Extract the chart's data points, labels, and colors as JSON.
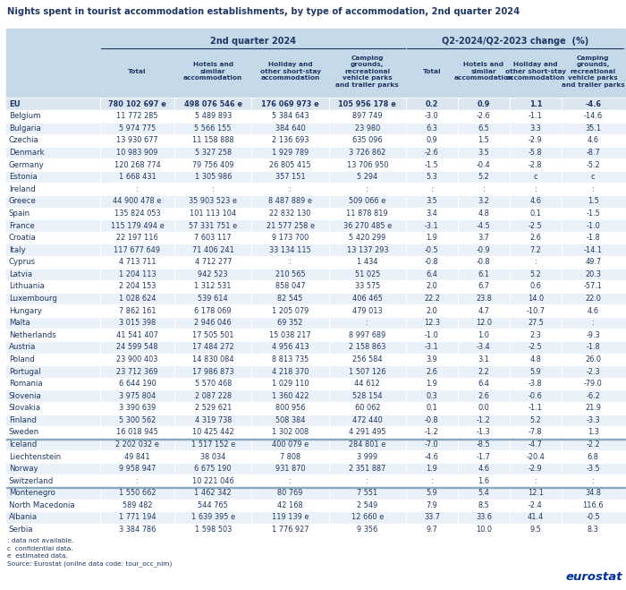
{
  "title": "Nights spent in tourist accommodation establishments, by type of accommodation, 2nd quarter 2024",
  "col_group1_label": "2nd quarter 2024",
  "col_group2_label": "Q2-2024/Q2-2023 change  (%)",
  "col_headers": [
    "Total",
    "Hotels and\nsimilar\naccommodation",
    "Holiday and\nother short-stay\naccommodation",
    "Camping\ngrounds,\nrecreational\nvehicle parks\nand trailer parks",
    "Total",
    "Hotels and\nsimilar\naccommodation",
    "Holiday and\nother short-stay\naccommodation",
    "Camping\ngrounds,\nrecreational\nvehicle parks\nand trailer parks"
  ],
  "rows": [
    [
      "EU",
      "780 102 697 e",
      "498 076 546 e",
      "176 069 973 e",
      "105 956 178 e",
      "0.2",
      "0.9",
      "1.1",
      "-4.6"
    ],
    [
      "Belgium",
      "11 772 285",
      "5 489 893",
      "5 384 643",
      "897 749",
      "-3.0",
      "-2.6",
      "-1.1",
      "-14.6"
    ],
    [
      "Bulgaria",
      "5 974 775",
      "5 566 155",
      "384 640",
      "23 980",
      "6.3",
      "6.5",
      "3.3",
      "35.1"
    ],
    [
      "Czechia",
      "13 930 677",
      "11 158 888",
      "2 136 693",
      "635 096",
      "0.9",
      "1.5",
      "-2.9",
      "4.6"
    ],
    [
      "Denmark",
      "10 983 909",
      "5 327 258",
      "1 929 789",
      "3 726 862",
      "-2.6",
      "3.5",
      "-5.8",
      "-8.7"
    ],
    [
      "Germany",
      "120 268 774",
      "79 756 409",
      "26 805 415",
      "13 706 950",
      "-1.5",
      "-0.4",
      "-2.8",
      "-5.2"
    ],
    [
      "Estonia",
      "1 668 431",
      "1 305 986",
      "357 151",
      "5 294",
      "5.3",
      "5.2",
      "c",
      "c"
    ],
    [
      "Ireland",
      ":",
      ":",
      ":",
      ":",
      ":",
      ":",
      ":",
      ":"
    ],
    [
      "Greece",
      "44 900 478 e",
      "35 903 523 e",
      "8 487 889 e",
      "509 066 e",
      "3.5",
      "3.2",
      "4.6",
      "1.5"
    ],
    [
      "Spain",
      "135 824 053",
      "101 113 104",
      "22 832 130",
      "11 878 819",
      "3.4",
      "4.8",
      "0.1",
      "-1.5"
    ],
    [
      "France",
      "115 179 494 e",
      "57 331 751 e",
      "21 577 258 e",
      "36 270 485 e",
      "-3.1",
      "-4.5",
      "-2.5",
      "-1.0"
    ],
    [
      "Croatia",
      "22 197 116",
      "7 603 117",
      "9 173 700",
      "5 420 299",
      "1.9",
      "3.7",
      "2.6",
      "-1.8"
    ],
    [
      "Italy",
      "117 677 649",
      "71 406 241",
      "33 134 115",
      "13 137 293",
      "-0.5",
      "-0.9",
      "7.2",
      "-14.1"
    ],
    [
      "Cyprus",
      "4 713 711",
      "4 712 277",
      ":",
      "1 434",
      "-0.8",
      "-0.8",
      ":",
      "49.7"
    ],
    [
      "Latvia",
      "1 204 113",
      "942 523",
      "210 565",
      "51 025",
      "6.4",
      "6.1",
      "5.2",
      "20.3"
    ],
    [
      "Lithuania",
      "2 204 153",
      "1 312 531",
      "858 047",
      "33 575",
      "2.0",
      "6.7",
      "0.6",
      "-57.1"
    ],
    [
      "Luxembourg",
      "1 028 624",
      "539 614",
      "82 545",
      "406 465",
      "22.2",
      "23.8",
      "14.0",
      "22.0"
    ],
    [
      "Hungary",
      "7 862 161",
      "6 178 069",
      "1 205 079",
      "479 013",
      "2.0",
      "4.7",
      "-10.7",
      "4.6"
    ],
    [
      "Malta",
      "3 015 398",
      "2 946 046",
      "69 352",
      ":",
      "12.3",
      "12.0",
      "27.5",
      ":"
    ],
    [
      "Netherlands",
      "41 541 407",
      "17 505 501",
      "15 038 217",
      "8 997 689",
      "-1.0",
      "1.0",
      "2.3",
      "-9.3"
    ],
    [
      "Austria",
      "24 599 548",
      "17 484 272",
      "4 956 413",
      "2 158 863",
      "-3.1",
      "-3.4",
      "-2.5",
      "-1.8"
    ],
    [
      "Poland",
      "23 900 403",
      "14 830 084",
      "8 813 735",
      "256 584",
      "3.9",
      "3.1",
      "4.8",
      "26.0"
    ],
    [
      "Portugal",
      "23 712 369",
      "17 986 873",
      "4 218 370",
      "1 507 126",
      "2.6",
      "2.2",
      "5.9",
      "-2.3"
    ],
    [
      "Romania",
      "6 644 190",
      "5 570 468",
      "1 029 110",
      "44 612",
      "1.9",
      "6.4",
      "-3.8",
      "-79.0"
    ],
    [
      "Slovenia",
      "3 975 804",
      "2 087 228",
      "1 360 422",
      "528 154",
      "0.3",
      "2.6",
      "-0.6",
      "-6.2"
    ],
    [
      "Slovakia",
      "3 390 639",
      "2 529 621",
      "800 956",
      "60 062",
      "0.1",
      "0.0",
      "-1.1",
      "21.9"
    ],
    [
      "Finland",
      "5 300 562",
      "4 319 738",
      "508 384",
      "472 440",
      "-0.8",
      "-1.2",
      "5.2",
      "-3.3"
    ],
    [
      "Sweden",
      "16 018 945",
      "10 425 442",
      "1 302 008",
      "4 291 495",
      "-1.2",
      "-1.3",
      "-7.8",
      "1.3"
    ],
    [
      "Iceland",
      "2 202 032 e",
      "1 517 152 e",
      "400 079 e",
      "284 801 e",
      "-7.0",
      "-8.5",
      "-4.7",
      "-2.2"
    ],
    [
      "Liechtenstein",
      "49 841",
      "38 034",
      "7 808",
      "3 999",
      "-4.6",
      "-1.7",
      "-20.4",
      "6.8"
    ],
    [
      "Norway",
      "9 958 947",
      "6 675 190",
      "931 870",
      "2 351 887",
      "1.9",
      "4.6",
      "-2.9",
      "-3.5"
    ],
    [
      "Switzerland",
      ":",
      "10 221 046",
      ":",
      ":",
      ":",
      "1.6",
      ":",
      ":"
    ],
    [
      "Montenegro",
      "1 550 662",
      "1 462 342",
      "80 769",
      "7 551",
      "5.9",
      "5.4",
      "12.1",
      "34.8"
    ],
    [
      "North Macedonia",
      "589 482",
      "544 765",
      "42 168",
      "2 549",
      "7.9",
      "8.5",
      "-2.4",
      "116.6"
    ],
    [
      "Albania",
      "1 771 194",
      "1 639 395 e",
      "119 139 e",
      "12 660 e",
      "33.7",
      "33.6",
      "41.4",
      "-0.5"
    ],
    [
      "Serbia",
      "3 384 786",
      "1 598 503",
      "1 776 927",
      "9 356",
      "9.7",
      "10.0",
      "9.5",
      "8.3"
    ]
  ],
  "footnote_lines": [
    ": data not available.",
    "c  confidential data.",
    "e  estimated data.",
    "Source: Eurostat (online data code: tour_occ_nim)"
  ],
  "bold_rows": [
    "EU"
  ],
  "separator_before": [
    "Iceland",
    "Montenegro"
  ],
  "header_bg": "#c5d9e8",
  "eu_bg": "#dce6f1",
  "odd_bg": "#eaf1f8",
  "even_bg": "#ffffff",
  "border_color": "#ffffff",
  "title_color": "#1f3864",
  "data_color": "#1f3864"
}
